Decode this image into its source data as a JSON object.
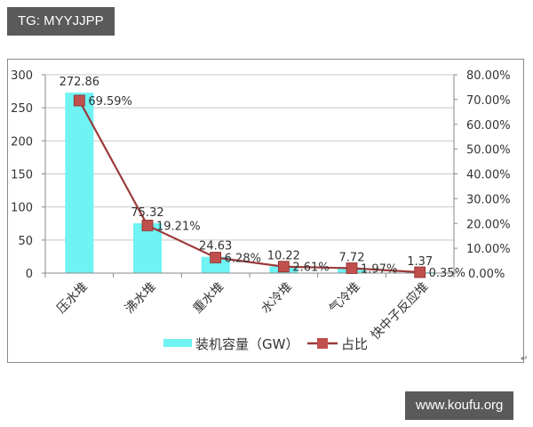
{
  "watermarks": {
    "top_left": "TG: MYYJJPP",
    "bottom_right": "www.koufu.org"
  },
  "colors": {
    "bar": "#6ff3f3",
    "line": "#9b3a3a",
    "marker": "#c0504d",
    "grid": "#c8c8c8",
    "axis": "#888888",
    "text": "#333333"
  },
  "chart_data": {
    "type": "bar",
    "combo": "bar+line (dual axis)",
    "title": "",
    "categories": [
      "压水堆",
      "沸水堆",
      "重水堆",
      "水冷堆",
      "气冷堆",
      "快中子反应堆"
    ],
    "series": [
      {
        "name": "装机容量（GW）",
        "type": "bar",
        "axis": "left",
        "values": [
          272.86,
          75.32,
          24.63,
          10.22,
          7.72,
          1.37
        ],
        "labels": [
          "272.86",
          "75.32",
          "24.63",
          "10.22",
          "7.72",
          "1.37"
        ]
      },
      {
        "name": "占比",
        "type": "line",
        "axis": "right",
        "values": [
          69.59,
          19.21,
          6.28,
          2.61,
          1.97,
          0.35
        ],
        "labels": [
          "69.59%",
          "19.21%",
          "6.28%",
          "2.61%",
          "1.97%",
          "0.35%"
        ]
      }
    ],
    "ylim_left": [
      0,
      300
    ],
    "yticks_left": [
      "0",
      "50",
      "100",
      "150",
      "200",
      "250",
      "300"
    ],
    "ylim_right": [
      0,
      80
    ],
    "yticks_right": [
      "0.00%",
      "10.00%",
      "20.00%",
      "30.00%",
      "40.00%",
      "50.00%",
      "60.00%",
      "70.00%",
      "80.00%"
    ],
    "xlabel": "",
    "ylabel": "",
    "grid": true,
    "legend_position": "bottom",
    "legend": [
      "装机容量（GW）",
      "占比"
    ]
  }
}
